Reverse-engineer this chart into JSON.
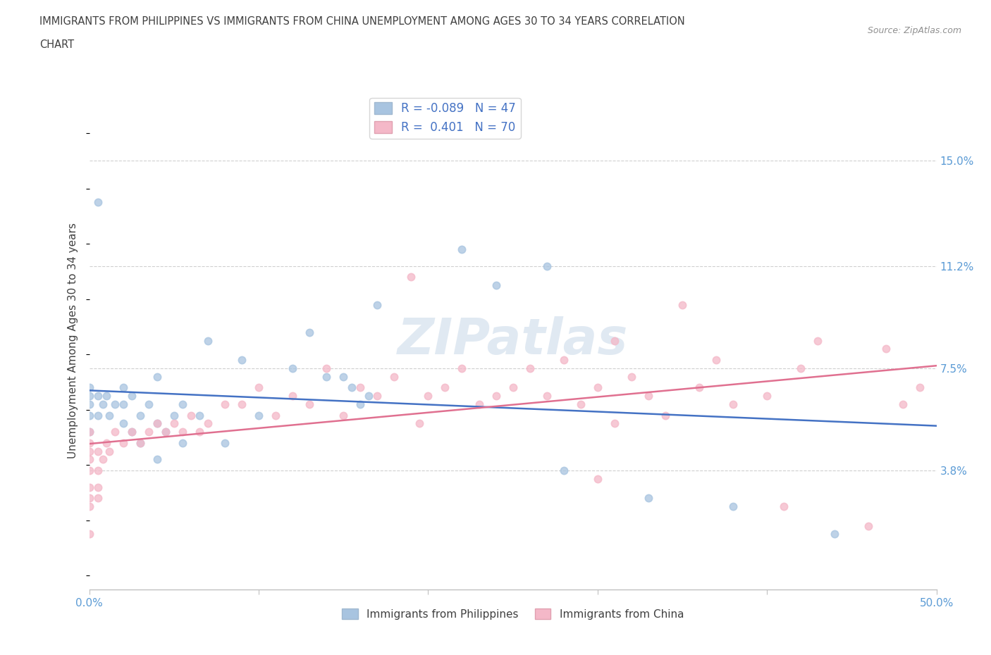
{
  "title_line1": "IMMIGRANTS FROM PHILIPPINES VS IMMIGRANTS FROM CHINA UNEMPLOYMENT AMONG AGES 30 TO 34 YEARS CORRELATION",
  "title_line2": "CHART",
  "source": "Source: ZipAtlas.com",
  "ylabel": "Unemployment Among Ages 30 to 34 years",
  "xlim": [
    0.0,
    0.5
  ],
  "ylim": [
    -0.005,
    0.175
  ],
  "ytick_positions": [
    0.038,
    0.075,
    0.112,
    0.15
  ],
  "ytick_labels": [
    "3.8%",
    "7.5%",
    "11.2%",
    "15.0%"
  ],
  "r_philippines": -0.089,
  "n_philippines": 47,
  "r_china": 0.401,
  "n_china": 70,
  "color_philippines": "#a8c4e0",
  "color_china": "#f4b8c8",
  "line_color_philippines": "#4472c4",
  "line_color_china": "#e07090",
  "watermark": "ZIPatlas",
  "philippines_scatter": [
    [
      0.005,
      0.135
    ],
    [
      0.22,
      0.118
    ],
    [
      0.27,
      0.112
    ],
    [
      0.24,
      0.105
    ],
    [
      0.17,
      0.098
    ],
    [
      0.13,
      0.088
    ],
    [
      0.07,
      0.085
    ],
    [
      0.09,
      0.078
    ],
    [
      0.12,
      0.075
    ],
    [
      0.04,
      0.072
    ],
    [
      0.14,
      0.072
    ],
    [
      0.15,
      0.072
    ],
    [
      0.0,
      0.068
    ],
    [
      0.02,
      0.068
    ],
    [
      0.155,
      0.068
    ],
    [
      0.0,
      0.065
    ],
    [
      0.005,
      0.065
    ],
    [
      0.01,
      0.065
    ],
    [
      0.025,
      0.065
    ],
    [
      0.165,
      0.065
    ],
    [
      0.0,
      0.062
    ],
    [
      0.008,
      0.062
    ],
    [
      0.015,
      0.062
    ],
    [
      0.02,
      0.062
    ],
    [
      0.035,
      0.062
    ],
    [
      0.055,
      0.062
    ],
    [
      0.16,
      0.062
    ],
    [
      0.0,
      0.058
    ],
    [
      0.005,
      0.058
    ],
    [
      0.012,
      0.058
    ],
    [
      0.03,
      0.058
    ],
    [
      0.05,
      0.058
    ],
    [
      0.065,
      0.058
    ],
    [
      0.1,
      0.058
    ],
    [
      0.02,
      0.055
    ],
    [
      0.04,
      0.055
    ],
    [
      0.0,
      0.052
    ],
    [
      0.025,
      0.052
    ],
    [
      0.045,
      0.052
    ],
    [
      0.03,
      0.048
    ],
    [
      0.055,
      0.048
    ],
    [
      0.08,
      0.048
    ],
    [
      0.04,
      0.042
    ],
    [
      0.28,
      0.038
    ],
    [
      0.33,
      0.028
    ],
    [
      0.38,
      0.025
    ],
    [
      0.44,
      0.015
    ]
  ],
  "china_scatter": [
    [
      0.19,
      0.108
    ],
    [
      0.35,
      0.098
    ],
    [
      0.31,
      0.085
    ],
    [
      0.43,
      0.085
    ],
    [
      0.47,
      0.082
    ],
    [
      0.28,
      0.078
    ],
    [
      0.37,
      0.078
    ],
    [
      0.14,
      0.075
    ],
    [
      0.22,
      0.075
    ],
    [
      0.26,
      0.075
    ],
    [
      0.42,
      0.075
    ],
    [
      0.18,
      0.072
    ],
    [
      0.32,
      0.072
    ],
    [
      0.1,
      0.068
    ],
    [
      0.16,
      0.068
    ],
    [
      0.21,
      0.068
    ],
    [
      0.25,
      0.068
    ],
    [
      0.3,
      0.068
    ],
    [
      0.36,
      0.068
    ],
    [
      0.49,
      0.068
    ],
    [
      0.12,
      0.065
    ],
    [
      0.17,
      0.065
    ],
    [
      0.2,
      0.065
    ],
    [
      0.24,
      0.065
    ],
    [
      0.27,
      0.065
    ],
    [
      0.33,
      0.065
    ],
    [
      0.4,
      0.065
    ],
    [
      0.08,
      0.062
    ],
    [
      0.09,
      0.062
    ],
    [
      0.13,
      0.062
    ],
    [
      0.23,
      0.062
    ],
    [
      0.29,
      0.062
    ],
    [
      0.38,
      0.062
    ],
    [
      0.48,
      0.062
    ],
    [
      0.06,
      0.058
    ],
    [
      0.11,
      0.058
    ],
    [
      0.15,
      0.058
    ],
    [
      0.34,
      0.058
    ],
    [
      0.04,
      0.055
    ],
    [
      0.05,
      0.055
    ],
    [
      0.07,
      0.055
    ],
    [
      0.195,
      0.055
    ],
    [
      0.31,
      0.055
    ],
    [
      0.0,
      0.052
    ],
    [
      0.015,
      0.052
    ],
    [
      0.025,
      0.052
    ],
    [
      0.035,
      0.052
    ],
    [
      0.045,
      0.052
    ],
    [
      0.055,
      0.052
    ],
    [
      0.065,
      0.052
    ],
    [
      0.0,
      0.048
    ],
    [
      0.01,
      0.048
    ],
    [
      0.02,
      0.048
    ],
    [
      0.03,
      0.048
    ],
    [
      0.0,
      0.045
    ],
    [
      0.005,
      0.045
    ],
    [
      0.012,
      0.045
    ],
    [
      0.0,
      0.042
    ],
    [
      0.008,
      0.042
    ],
    [
      0.0,
      0.038
    ],
    [
      0.005,
      0.038
    ],
    [
      0.3,
      0.035
    ],
    [
      0.0,
      0.032
    ],
    [
      0.005,
      0.032
    ],
    [
      0.0,
      0.028
    ],
    [
      0.005,
      0.028
    ],
    [
      0.0,
      0.025
    ],
    [
      0.41,
      0.025
    ],
    [
      0.46,
      0.018
    ],
    [
      0.0,
      0.015
    ]
  ]
}
